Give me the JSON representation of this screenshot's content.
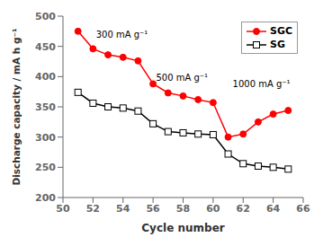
{
  "chart_data": {
    "type": "line",
    "x": [
      51,
      52,
      53,
      54,
      55,
      56,
      57,
      58,
      59,
      60,
      61,
      62,
      63,
      64,
      65
    ],
    "series": [
      {
        "name": "SGC",
        "color": "#ff0000",
        "marker": "circle",
        "values": [
          475,
          446,
          436,
          432,
          426,
          388,
          373,
          368,
          362,
          357,
          300,
          305,
          325,
          338,
          344
        ]
      },
      {
        "name": "SG",
        "color": "#000000",
        "marker": "open_square",
        "values": [
          374,
          356,
          350,
          348,
          343,
          322,
          309,
          307,
          305,
          304,
          272,
          256,
          252,
          250,
          247
        ]
      }
    ],
    "xlabel": "Cycle number",
    "ylabel": "Discharge capacity / mA h g⁻¹",
    "xlim": [
      50,
      66
    ],
    "ylim": [
      200,
      500
    ],
    "xticks": [
      50,
      52,
      54,
      56,
      58,
      60,
      62,
      64,
      66
    ],
    "yticks": [
      200,
      250,
      300,
      350,
      400,
      450,
      500
    ],
    "annotations": [
      {
        "text": "300 mA g⁻¹",
        "x": 52.2,
        "y": 470
      },
      {
        "text": "500 mA g⁻¹",
        "x": 56.2,
        "y": 398
      },
      {
        "text": "1000 mA g⁻¹",
        "x": 61.3,
        "y": 388
      }
    ],
    "legend": "upper right",
    "grid": false
  }
}
